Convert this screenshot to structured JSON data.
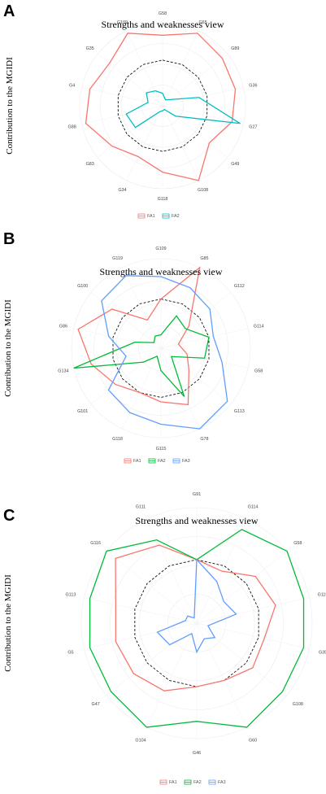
{
  "chart_data": [
    {
      "type": "radar",
      "panel": "A",
      "title": "Strengths and weaknesses view",
      "ylabel": "Contribution to the MGIDI",
      "categories": [
        "G58",
        "G65",
        "G89",
        "G36",
        "G27",
        "G49",
        "G108",
        "G118",
        "G34",
        "G83",
        "G88",
        "G4",
        "G35",
        "G109"
      ],
      "reference": [
        0.55,
        0.55,
        0.55,
        0.55,
        0.55,
        0.55,
        0.55,
        0.55,
        0.55,
        0.55,
        0.55,
        0.55,
        0.55,
        0.55
      ],
      "series": [
        {
          "name": "FA1",
          "color": "#F8766D",
          "values": [
            0.85,
            0.97,
            0.92,
            0.9,
            0.86,
            0.72,
            1.0,
            0.8,
            0.68,
            0.78,
            0.95,
            0.9,
            0.82,
            0.97
          ]
        },
        {
          "name": "FA2",
          "color": "#00BFC4",
          "values": [
            0.15,
            0.08,
            0.12,
            0.45,
            0.96,
            0.2,
            0.05,
            0.06,
            0.08,
            0.42,
            0.45,
            0.18,
            0.25,
            0.2
          ]
        }
      ],
      "legend_position": "bottom"
    },
    {
      "type": "radar",
      "panel": "B",
      "title": "Strengths and weaknesses view",
      "ylabel": "Contribution to the MGIDI",
      "categories": [
        "G109",
        "G85",
        "G112",
        "G114",
        "G58",
        "G113",
        "G78",
        "G115",
        "G118",
        "G101",
        "G134",
        "G86",
        "G100",
        "G119"
      ],
      "reference": [
        0.55,
        0.55,
        0.55,
        0.55,
        0.55,
        0.55,
        0.55,
        0.55,
        0.55,
        0.55,
        0.55,
        0.55,
        0.55,
        0.55
      ],
      "series": [
        {
          "name": "FA1",
          "color": "#F8766D",
          "values": [
            0.55,
            1.0,
            0.4,
            0.2,
            0.3,
            0.4,
            0.7,
            0.6,
            0.55,
            0.65,
            0.8,
            0.95,
            0.7,
            0.35
          ]
        },
        {
          "name": "FA2",
          "color": "#00BA38",
          "values": [
            0.15,
            0.4,
            0.35,
            0.55,
            0.5,
            0.15,
            0.6,
            0.25,
            0.1,
            0.25,
            1.0,
            0.3,
            0.1,
            0.15
          ]
        },
        {
          "name": "FA3",
          "color": "#619CFF",
          "values": [
            0.8,
            0.75,
            0.7,
            0.6,
            0.7,
            0.95,
            1.0,
            0.85,
            0.8,
            0.75,
            0.4,
            0.6,
            0.85,
            0.9
          ]
        }
      ],
      "legend_position": "bottom"
    },
    {
      "type": "radar",
      "panel": "C",
      "title": "Strengths and weaknesses view",
      "ylabel": "Contribution to the MGIDI",
      "categories": [
        "G91",
        "G114",
        "G58",
        "G115",
        "G35",
        "G108",
        "G60",
        "G46",
        "G104",
        "G47",
        "G5",
        "G113",
        "G116",
        "G111"
      ],
      "reference": [
        0.55,
        0.55,
        0.55,
        0.55,
        0.55,
        0.55,
        0.55,
        0.55,
        0.55,
        0.55,
        0.55,
        0.55,
        0.55,
        0.55
      ],
      "series": [
        {
          "name": "FA1",
          "color": "#F8766D",
          "values": [
            0.55,
            0.5,
            0.65,
            0.7,
            0.6,
            0.62,
            0.55,
            0.55,
            0.65,
            0.7,
            0.72,
            0.72,
            0.9,
            0.75
          ]
        },
        {
          "name": "FA2",
          "color": "#00BA38",
          "values": [
            0.55,
            0.9,
            1.0,
            0.95,
            0.95,
            0.95,
            1.0,
            0.85,
            1.0,
            0.95,
            0.95,
            0.95,
            1.0,
            0.8
          ]
        },
        {
          "name": "FA3",
          "color": "#619CFF",
          "values": [
            0.55,
            0.4,
            0.3,
            0.35,
            0.1,
            0.2,
            0.15,
            0.25,
            0.1,
            0.3,
            0.35,
            0.1,
            0.1,
            0.05
          ]
        }
      ],
      "legend_position": "bottom"
    }
  ]
}
